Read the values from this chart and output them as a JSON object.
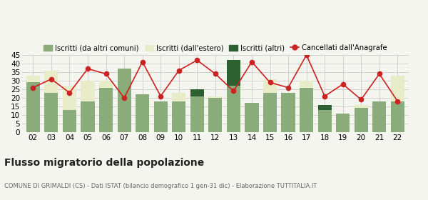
{
  "years": [
    "02",
    "03",
    "04",
    "05",
    "06",
    "07",
    "08",
    "09",
    "10",
    "11",
    "12",
    "13",
    "14",
    "15",
    "16",
    "17",
    "18",
    "19",
    "20",
    "21",
    "22"
  ],
  "iscritti_comuni": [
    29,
    23,
    13,
    18,
    26,
    37,
    22,
    18,
    18,
    21,
    20,
    27,
    17,
    23,
    23,
    26,
    13,
    11,
    14,
    18,
    18
  ],
  "iscritti_estero": [
    4,
    13,
    14,
    12,
    4,
    0,
    0,
    0,
    5,
    3,
    1,
    0,
    0,
    8,
    0,
    4,
    0,
    0,
    2,
    0,
    15
  ],
  "iscritti_altri": [
    0,
    0,
    0,
    0,
    0,
    0,
    0,
    0,
    0,
    4,
    0,
    15,
    0,
    0,
    0,
    0,
    3,
    0,
    0,
    0,
    0
  ],
  "cancellati": [
    26,
    31,
    23,
    37,
    34,
    20,
    41,
    21,
    36,
    42,
    34,
    24,
    41,
    29,
    26,
    45,
    21,
    28,
    19,
    34,
    18
  ],
  "color_comuni": "#8aab7a",
  "color_estero": "#e8ecc8",
  "color_altri": "#2d6030",
  "color_cancellati": "#cc2222",
  "background": "#f5f5f0",
  "grid_color": "#cccccc",
  "title": "Flusso migratorio della popolazione",
  "subtitle": "COMUNE DI GRIMALDI (CS) - Dati ISTAT (bilancio demografico 1 gen-31 dic) - Elaborazione TUTTITALIA.IT",
  "legend_labels": [
    "Iscritti (da altri comuni)",
    "Iscritti (dall'estero)",
    "Iscritti (altri)",
    "Cancellati dall'Anagrafe"
  ],
  "ylim": [
    0,
    45
  ],
  "yticks": [
    0,
    5,
    10,
    15,
    20,
    25,
    30,
    35,
    40,
    45
  ]
}
